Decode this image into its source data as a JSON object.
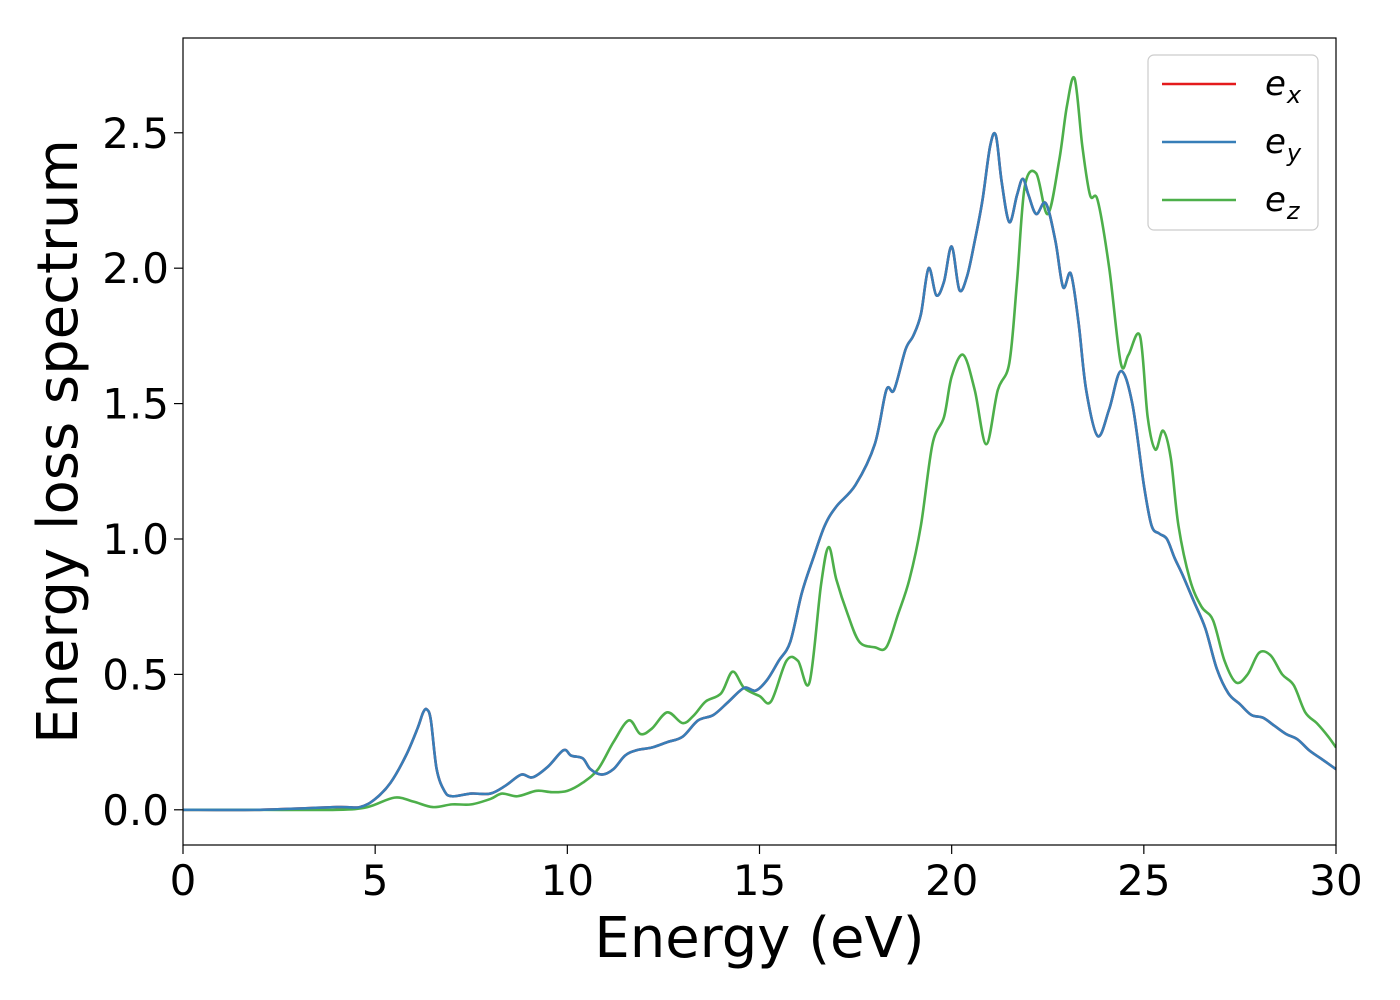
{
  "chart_data": {
    "type": "line",
    "xlabel": "Energy (eV)",
    "ylabel": "Energy loss spectrum",
    "xlim": [
      0,
      30
    ],
    "ylim": [
      -0.13,
      2.85
    ],
    "xticks": [
      0,
      5,
      10,
      15,
      20,
      25,
      30
    ],
    "xtick_labels": [
      "0",
      "5",
      "10",
      "15",
      "20",
      "25",
      "30"
    ],
    "yticks": [
      0.0,
      0.5,
      1.0,
      1.5,
      2.0,
      2.5
    ],
    "ytick_labels": [
      "0.0",
      "0.5",
      "1.0",
      "1.5",
      "2.0",
      "2.5"
    ],
    "grid": false,
    "legend_position": "top-right",
    "series": [
      {
        "name": "e",
        "subscript": "x",
        "color": "#e41a1c",
        "x": [
          0,
          2,
          4,
          4.6,
          5.0,
          5.4,
          5.8,
          6.1,
          6.25,
          6.35,
          6.45,
          6.6,
          6.8,
          7.0,
          7.5,
          8.0,
          8.4,
          8.8,
          9.1,
          9.5,
          9.9,
          10.1,
          10.4,
          10.6,
          10.9,
          11.2,
          11.5,
          11.8,
          12.2,
          12.6,
          13.0,
          13.4,
          13.8,
          14.2,
          14.6,
          14.9,
          15.2,
          15.5,
          15.8,
          16.1,
          16.4,
          16.7,
          17.0,
          17.5,
          18.0,
          18.3,
          18.5,
          18.8,
          19.0,
          19.2,
          19.4,
          19.6,
          19.8,
          20.0,
          20.2,
          20.4,
          20.6,
          20.8,
          21.0,
          21.15,
          21.3,
          21.5,
          21.7,
          21.85,
          22.0,
          22.2,
          22.45,
          22.7,
          22.9,
          23.1,
          23.3,
          23.5,
          23.8,
          24.1,
          24.4,
          24.7,
          25.0,
          25.2,
          25.4,
          25.6,
          25.8,
          26.0,
          26.3,
          26.6,
          26.9,
          27.2,
          27.5,
          27.8,
          28.1,
          28.4,
          28.7,
          29.0,
          29.3,
          29.6,
          30.0
        ],
        "values": [
          0.0,
          0.0,
          0.01,
          0.01,
          0.04,
          0.1,
          0.2,
          0.3,
          0.36,
          0.37,
          0.33,
          0.15,
          0.07,
          0.05,
          0.06,
          0.06,
          0.09,
          0.13,
          0.12,
          0.16,
          0.22,
          0.2,
          0.19,
          0.15,
          0.13,
          0.15,
          0.2,
          0.22,
          0.23,
          0.25,
          0.27,
          0.33,
          0.35,
          0.4,
          0.45,
          0.44,
          0.48,
          0.55,
          0.62,
          0.8,
          0.93,
          1.05,
          1.12,
          1.2,
          1.35,
          1.55,
          1.55,
          1.7,
          1.75,
          1.83,
          2.0,
          1.9,
          1.95,
          2.08,
          1.92,
          1.97,
          2.1,
          2.25,
          2.45,
          2.49,
          2.32,
          2.17,
          2.27,
          2.33,
          2.27,
          2.2,
          2.24,
          2.1,
          1.93,
          1.98,
          1.8,
          1.55,
          1.38,
          1.48,
          1.62,
          1.5,
          1.2,
          1.05,
          1.02,
          1.0,
          0.93,
          0.87,
          0.77,
          0.67,
          0.52,
          0.43,
          0.39,
          0.35,
          0.34,
          0.31,
          0.28,
          0.26,
          0.22,
          0.19,
          0.15
        ]
      },
      {
        "name": "e",
        "subscript": "y",
        "color": "#377eb8",
        "x": [
          0,
          2,
          4,
          4.6,
          5.0,
          5.4,
          5.8,
          6.1,
          6.25,
          6.35,
          6.45,
          6.6,
          6.8,
          7.0,
          7.5,
          8.0,
          8.4,
          8.8,
          9.1,
          9.5,
          9.9,
          10.1,
          10.4,
          10.6,
          10.9,
          11.2,
          11.5,
          11.8,
          12.2,
          12.6,
          13.0,
          13.4,
          13.8,
          14.2,
          14.6,
          14.9,
          15.2,
          15.5,
          15.8,
          16.1,
          16.4,
          16.7,
          17.0,
          17.5,
          18.0,
          18.3,
          18.5,
          18.8,
          19.0,
          19.2,
          19.4,
          19.6,
          19.8,
          20.0,
          20.2,
          20.4,
          20.6,
          20.8,
          21.0,
          21.15,
          21.3,
          21.5,
          21.7,
          21.85,
          22.0,
          22.2,
          22.45,
          22.7,
          22.9,
          23.1,
          23.3,
          23.5,
          23.8,
          24.1,
          24.4,
          24.7,
          25.0,
          25.2,
          25.4,
          25.6,
          25.8,
          26.0,
          26.3,
          26.6,
          26.9,
          27.2,
          27.5,
          27.8,
          28.1,
          28.4,
          28.7,
          29.0,
          29.3,
          29.6,
          30.0
        ],
        "values": [
          0.0,
          0.0,
          0.01,
          0.01,
          0.04,
          0.1,
          0.2,
          0.3,
          0.36,
          0.37,
          0.33,
          0.15,
          0.07,
          0.05,
          0.06,
          0.06,
          0.09,
          0.13,
          0.12,
          0.16,
          0.22,
          0.2,
          0.19,
          0.15,
          0.13,
          0.15,
          0.2,
          0.22,
          0.23,
          0.25,
          0.27,
          0.33,
          0.35,
          0.4,
          0.45,
          0.44,
          0.48,
          0.55,
          0.62,
          0.8,
          0.93,
          1.05,
          1.12,
          1.2,
          1.35,
          1.55,
          1.55,
          1.7,
          1.75,
          1.83,
          2.0,
          1.9,
          1.95,
          2.08,
          1.92,
          1.97,
          2.1,
          2.25,
          2.45,
          2.49,
          2.32,
          2.17,
          2.27,
          2.33,
          2.27,
          2.2,
          2.24,
          2.1,
          1.93,
          1.98,
          1.8,
          1.55,
          1.38,
          1.48,
          1.62,
          1.5,
          1.2,
          1.05,
          1.02,
          1.0,
          0.93,
          0.87,
          0.77,
          0.67,
          0.52,
          0.43,
          0.39,
          0.35,
          0.34,
          0.31,
          0.28,
          0.26,
          0.22,
          0.19,
          0.15
        ]
      },
      {
        "name": "e",
        "subscript": "z",
        "color": "#4daf4a",
        "x": [
          0,
          2,
          4,
          4.8,
          5.5,
          6.0,
          6.5,
          7.0,
          7.5,
          8.0,
          8.3,
          8.7,
          9.2,
          9.6,
          10.0,
          10.4,
          10.8,
          11.2,
          11.6,
          11.9,
          12.2,
          12.6,
          13.0,
          13.3,
          13.6,
          14.0,
          14.3,
          14.6,
          15.0,
          15.3,
          15.7,
          16.0,
          16.3,
          16.6,
          16.8,
          17.0,
          17.3,
          17.6,
          18.0,
          18.3,
          18.6,
          18.9,
          19.2,
          19.5,
          19.8,
          20.0,
          20.3,
          20.6,
          20.9,
          21.2,
          21.5,
          21.7,
          21.9,
          22.2,
          22.5,
          22.8,
          23.0,
          23.2,
          23.4,
          23.6,
          23.8,
          24.1,
          24.4,
          24.6,
          24.9,
          25.1,
          25.3,
          25.5,
          25.7,
          25.9,
          26.2,
          26.5,
          26.8,
          27.1,
          27.4,
          27.7,
          28.0,
          28.3,
          28.6,
          28.9,
          29.2,
          29.5,
          29.8,
          30.0
        ],
        "values": [
          0.0,
          0.0,
          0.0,
          0.01,
          0.045,
          0.03,
          0.01,
          0.02,
          0.02,
          0.04,
          0.06,
          0.05,
          0.07,
          0.065,
          0.07,
          0.1,
          0.15,
          0.25,
          0.33,
          0.28,
          0.3,
          0.36,
          0.32,
          0.35,
          0.4,
          0.43,
          0.51,
          0.45,
          0.42,
          0.4,
          0.55,
          0.55,
          0.47,
          0.83,
          0.97,
          0.85,
          0.72,
          0.62,
          0.6,
          0.6,
          0.72,
          0.85,
          1.05,
          1.35,
          1.45,
          1.6,
          1.68,
          1.55,
          1.35,
          1.55,
          1.65,
          1.95,
          2.3,
          2.35,
          2.2,
          2.4,
          2.6,
          2.7,
          2.45,
          2.27,
          2.25,
          2.0,
          1.65,
          1.68,
          1.75,
          1.45,
          1.33,
          1.4,
          1.3,
          1.05,
          0.85,
          0.75,
          0.7,
          0.55,
          0.47,
          0.5,
          0.58,
          0.57,
          0.5,
          0.46,
          0.36,
          0.32,
          0.27,
          0.23
        ]
      }
    ]
  }
}
